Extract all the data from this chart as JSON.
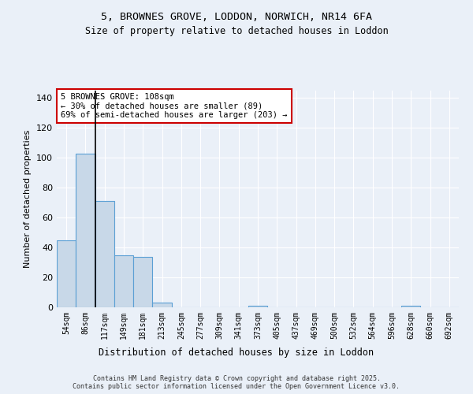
{
  "title1": "5, BROWNES GROVE, LODDON, NORWICH, NR14 6FA",
  "title2": "Size of property relative to detached houses in Loddon",
  "xlabel": "Distribution of detached houses by size in Loddon",
  "ylabel": "Number of detached properties",
  "categories": [
    "54sqm",
    "86sqm",
    "117sqm",
    "149sqm",
    "181sqm",
    "213sqm",
    "245sqm",
    "277sqm",
    "309sqm",
    "341sqm",
    "373sqm",
    "405sqm",
    "437sqm",
    "469sqm",
    "500sqm",
    "532sqm",
    "564sqm",
    "596sqm",
    "628sqm",
    "660sqm",
    "692sqm"
  ],
  "values": [
    45,
    103,
    71,
    35,
    34,
    3,
    0,
    0,
    0,
    0,
    1,
    0,
    0,
    0,
    0,
    0,
    0,
    0,
    1,
    0,
    0
  ],
  "bar_color": "#c8d8e8",
  "bar_edge_color": "#5a9fd4",
  "background_color": "#eaf0f8",
  "grid_color": "#ffffff",
  "annotation_box_text": "5 BROWNES GROVE: 108sqm\n← 30% of detached houses are smaller (89)\n69% of semi-detached houses are larger (203) →",
  "annotation_box_color": "#ffffff",
  "annotation_box_edge_color": "#cc0000",
  "vline_x": 1.5,
  "vline_color": "#000000",
  "ylim": [
    0,
    145
  ],
  "yticks": [
    0,
    20,
    40,
    60,
    80,
    100,
    120,
    140
  ],
  "footer1": "Contains HM Land Registry data © Crown copyright and database right 2025.",
  "footer2": "Contains public sector information licensed under the Open Government Licence v3.0."
}
